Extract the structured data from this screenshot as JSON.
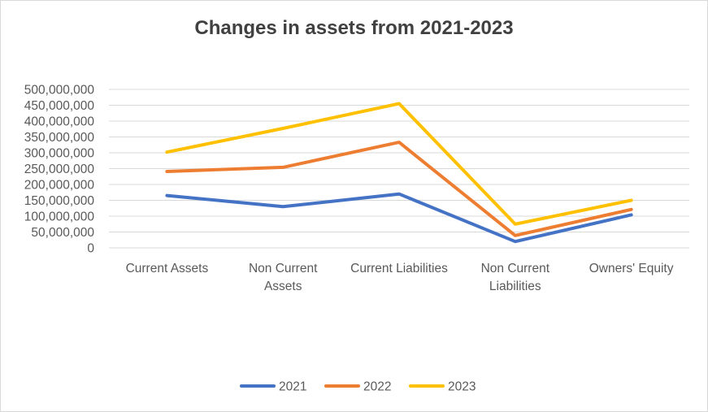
{
  "chart_data": {
    "type": "line",
    "title": "Changes in assets from 2021-2023",
    "xlabel": "",
    "ylabel": "",
    "categories": [
      [
        "Current Assets"
      ],
      [
        "Non Current",
        "Assets"
      ],
      [
        "Current Liabilities"
      ],
      [
        "Non Current",
        "Liabilities"
      ],
      [
        "Owners' Equity"
      ]
    ],
    "series": [
      {
        "name": "2021",
        "color": "#4472C4",
        "values": [
          165000000,
          130000000,
          170000000,
          20000000,
          104000000
        ]
      },
      {
        "name": "2022",
        "color": "#ED7D31",
        "values": [
          241000000,
          254000000,
          333000000,
          39000000,
          121000000
        ]
      },
      {
        "name": "2023",
        "color": "#FFC000",
        "values": [
          302000000,
          377000000,
          455000000,
          75000000,
          150000000
        ]
      }
    ],
    "yticks": [
      "500,000,000",
      "450,000,000",
      "400,000,000",
      "350,000,000",
      "300,000,000",
      "250,000,000",
      "200,000,000",
      "150,000,000",
      "100,000,000",
      "50,000,000",
      "0"
    ],
    "ylim": [
      0,
      500000000
    ],
    "grid": true,
    "legend_position": "bottom"
  }
}
